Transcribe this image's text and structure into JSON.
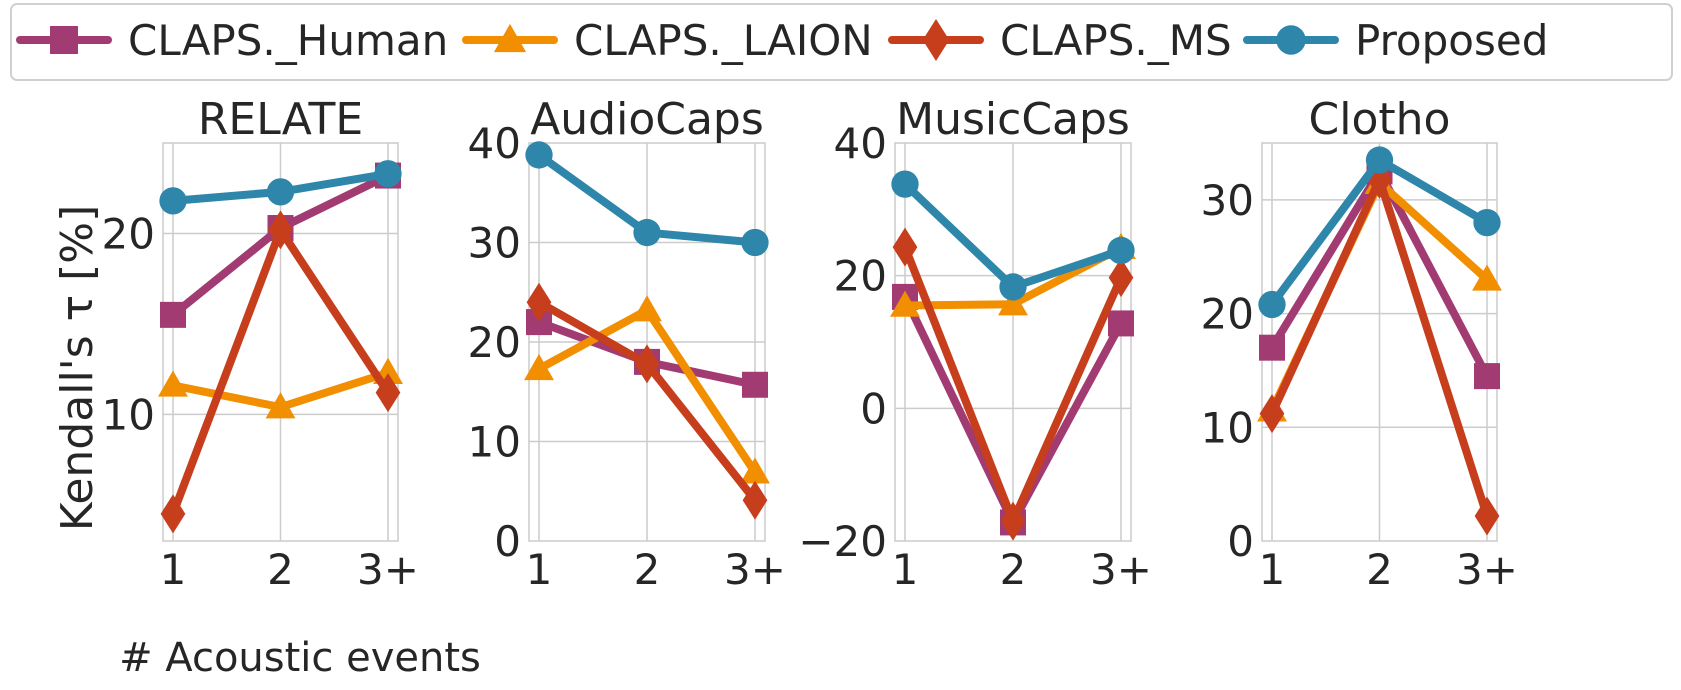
{
  "chart_data": {
    "type": "line",
    "x_label": "# Acoustic events",
    "y_label": "Kendall's τ [%]",
    "categories": [
      "1",
      "2",
      "3+"
    ],
    "legend": {
      "placement": "top-center",
      "entries": [
        "CLAPS._Human",
        "CLAPS._LAION",
        "CLAPS._MS",
        "Proposed"
      ]
    },
    "series_styles": [
      {
        "name": "CLAPS._Human",
        "color": "#a23b72",
        "marker": "square"
      },
      {
        "name": "CLAPS._LAION",
        "color": "#f18f01",
        "marker": "triangle"
      },
      {
        "name": "CLAPS._MS",
        "color": "#c73e1d",
        "marker": "diamond"
      },
      {
        "name": "Proposed",
        "color": "#2e86ab",
        "marker": "circle"
      }
    ],
    "panels": [
      {
        "title": "RELATE",
        "ylim": [
          3,
          25
        ],
        "yticks": [
          10,
          20
        ],
        "grid": true,
        "series": [
          {
            "name": "CLAPS._Human",
            "values": [
              15.5,
              20.3,
              23.2
            ]
          },
          {
            "name": "CLAPS._LAION",
            "values": [
              11.6,
              10.4,
              12.3
            ]
          },
          {
            "name": "CLAPS._MS",
            "values": [
              4.5,
              20.2,
              11.2
            ]
          },
          {
            "name": "Proposed",
            "values": [
              21.8,
              22.3,
              23.3
            ]
          }
        ]
      },
      {
        "title": "AudioCaps",
        "ylim": [
          0,
          40
        ],
        "yticks": [
          0,
          10,
          20,
          30,
          40
        ],
        "grid": true,
        "series": [
          {
            "name": "CLAPS._Human",
            "values": [
              22.0,
              18.0,
              15.7
            ]
          },
          {
            "name": "CLAPS._LAION",
            "values": [
              17.3,
              23.2,
              6.9
            ]
          },
          {
            "name": "CLAPS._MS",
            "values": [
              24.0,
              17.8,
              4.1
            ]
          },
          {
            "name": "Proposed",
            "values": [
              38.8,
              31.0,
              30.0
            ]
          }
        ]
      },
      {
        "title": "MusicCaps",
        "ylim": [
          -20,
          40
        ],
        "yticks": [
          -20,
          0,
          20,
          40
        ],
        "grid": true,
        "series": [
          {
            "name": "CLAPS._Human",
            "values": [
              16.8,
              -17.2,
              12.8
            ]
          },
          {
            "name": "CLAPS._LAION",
            "values": [
              15.5,
              15.7,
              24.2
            ]
          },
          {
            "name": "CLAPS._MS",
            "values": [
              24.3,
              -17.0,
              19.7
            ]
          },
          {
            "name": "Proposed",
            "values": [
              33.8,
              18.3,
              23.8
            ]
          }
        ]
      },
      {
        "title": "Clotho",
        "ylim": [
          0,
          35
        ],
        "yticks": [
          0,
          10,
          20,
          30
        ],
        "grid": true,
        "series": [
          {
            "name": "CLAPS._Human",
            "values": [
              17.0,
              32.5,
              14.5
            ]
          },
          {
            "name": "CLAPS._LAION",
            "values": [
              11.5,
              31.5,
              23.0
            ]
          },
          {
            "name": "CLAPS._MS",
            "values": [
              11.2,
              31.8,
              2.2
            ]
          },
          {
            "name": "Proposed",
            "values": [
              20.8,
              33.5,
              28.0
            ]
          }
        ]
      }
    ]
  }
}
